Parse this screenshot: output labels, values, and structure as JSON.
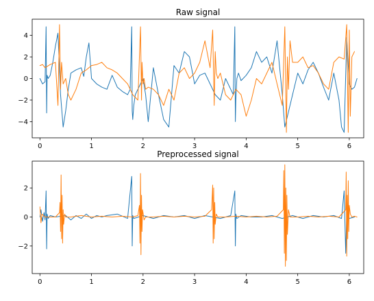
{
  "chart_data": [
    {
      "type": "line",
      "title": "Raw signal",
      "xlabel": "",
      "ylabel": "",
      "xlim": [
        -0.15,
        6.28
      ],
      "ylim": [
        -5.5,
        5.5
      ],
      "xticks": [
        "0",
        "1",
        "2",
        "3",
        "4",
        "5",
        "6"
      ],
      "yticks": [
        "4",
        "2",
        "0",
        "−2",
        "−4"
      ],
      "grid": false,
      "series": [
        {
          "color": "#1f77b4",
          "x": [
            0.0,
            0.05,
            0.1,
            0.12,
            0.13,
            0.14,
            0.16,
            0.2,
            0.25,
            0.3,
            0.35,
            0.4,
            0.45,
            0.5,
            0.55,
            0.6,
            0.7,
            0.8,
            0.85,
            0.9,
            0.95,
            1.0,
            1.1,
            1.2,
            1.3,
            1.4,
            1.5,
            1.6,
            1.7,
            1.75,
            1.78,
            1.79,
            1.8,
            1.82,
            1.85,
            1.9,
            1.95,
            2.0,
            2.05,
            2.1,
            2.2,
            2.3,
            2.4,
            2.5,
            2.6,
            2.7,
            2.8,
            2.9,
            3.0,
            3.1,
            3.2,
            3.3,
            3.4,
            3.5,
            3.6,
            3.7,
            3.75,
            3.78,
            3.79,
            3.8,
            3.82,
            3.85,
            3.9,
            4.0,
            4.1,
            4.2,
            4.3,
            4.4,
            4.5,
            4.6,
            4.7,
            4.75,
            4.8,
            4.9,
            5.0,
            5.1,
            5.2,
            5.3,
            5.4,
            5.5,
            5.6,
            5.7,
            5.8,
            5.85,
            5.9,
            5.95,
            6.0,
            6.05,
            6.1,
            6.15
          ],
          "y": [
            0.0,
            -0.5,
            -0.3,
            4.8,
            -3.2,
            0.3,
            0.0,
            0.3,
            1.5,
            3.0,
            4.2,
            -1.5,
            -4.5,
            -3.0,
            -1.0,
            0.5,
            0.8,
            1.0,
            0.2,
            2.0,
            3.3,
            0.0,
            -0.5,
            -0.8,
            -1.0,
            0.3,
            -0.8,
            -1.2,
            -1.5,
            -1.0,
            4.8,
            -3.0,
            -3.8,
            -2.5,
            -1.5,
            -1.0,
            -0.5,
            0.0,
            -1.5,
            -4.0,
            1.0,
            -1.5,
            -3.8,
            -4.5,
            1.2,
            0.5,
            2.5,
            2.0,
            -0.5,
            0.3,
            0.5,
            -0.5,
            -1.5,
            -2.0,
            0.0,
            -1.0,
            -1.5,
            4.8,
            -4.0,
            -2.0,
            0.0,
            0.5,
            -0.2,
            0.3,
            1.0,
            2.5,
            1.5,
            2.0,
            0.5,
            3.5,
            -1.5,
            -4.5,
            -3.5,
            -1.5,
            0.5,
            -0.5,
            0.8,
            1.5,
            0.5,
            -0.8,
            -2.0,
            0.5,
            -2.0,
            -4.5,
            -5.0,
            3.8,
            -0.5,
            -1.0,
            -0.8,
            0.0
          ]
        },
        {
          "color": "#ff7f0e",
          "x": [
            0.0,
            0.05,
            0.1,
            0.2,
            0.3,
            0.35,
            0.38,
            0.4,
            0.42,
            0.45,
            0.5,
            0.55,
            0.6,
            0.7,
            0.8,
            0.9,
            1.0,
            1.1,
            1.2,
            1.3,
            1.4,
            1.5,
            1.6,
            1.7,
            1.8,
            1.9,
            1.95,
            1.97,
            1.98,
            2.0,
            2.02,
            2.05,
            2.1,
            2.2,
            2.3,
            2.4,
            2.5,
            2.6,
            2.7,
            2.8,
            2.9,
            3.0,
            3.1,
            3.2,
            3.3,
            3.35,
            3.38,
            3.4,
            3.42,
            3.45,
            3.5,
            3.6,
            3.7,
            3.8,
            3.9,
            4.0,
            4.1,
            4.2,
            4.3,
            4.4,
            4.5,
            4.6,
            4.7,
            4.75,
            4.78,
            4.8,
            4.82,
            4.85,
            4.9,
            5.0,
            5.1,
            5.2,
            5.3,
            5.4,
            5.5,
            5.6,
            5.7,
            5.8,
            5.9,
            5.95,
            5.98,
            6.0,
            6.02,
            6.05,
            6.1
          ],
          "y": [
            1.2,
            1.3,
            1.0,
            1.3,
            1.5,
            -2.5,
            5.0,
            -1.0,
            1.5,
            -0.5,
            0.0,
            -1.5,
            -2.0,
            -1.0,
            0.5,
            0.8,
            1.2,
            1.3,
            1.5,
            1.0,
            0.8,
            0.5,
            0.0,
            -0.5,
            -1.5,
            -2.0,
            4.8,
            -2.0,
            1.5,
            -0.5,
            0.0,
            -1.0,
            -0.8,
            -1.0,
            -1.5,
            -2.5,
            -1.0,
            -2.0,
            0.5,
            1.0,
            0.0,
            0.5,
            1.5,
            3.5,
            1.0,
            4.5,
            -2.5,
            2.5,
            0.5,
            0.0,
            0.5,
            -1.5,
            -2.0,
            -1.0,
            -1.5,
            -3.5,
            -2.0,
            0.0,
            -0.5,
            0.5,
            1.5,
            -0.5,
            -2.5,
            4.8,
            -5.0,
            2.0,
            -1.0,
            3.5,
            1.5,
            1.5,
            2.0,
            1.0,
            1.2,
            0.5,
            -0.5,
            -1.0,
            1.5,
            2.0,
            1.8,
            5.0,
            -5.0,
            4.5,
            -3.5,
            2.0,
            2.5
          ]
        }
      ]
    },
    {
      "type": "line",
      "title": "Preprocessed signal",
      "xlabel": "",
      "ylabel": "",
      "xlim": [
        -0.15,
        6.28
      ],
      "ylim": [
        -3.9,
        3.85
      ],
      "xticks": [
        "0",
        "1",
        "2",
        "3",
        "4",
        "5",
        "6"
      ],
      "yticks": [
        "2",
        "0",
        "−2"
      ],
      "grid": false,
      "series": [
        {
          "color": "#1f77b4",
          "x": [
            0.0,
            0.02,
            0.05,
            0.08,
            0.1,
            0.12,
            0.13,
            0.14,
            0.16,
            0.2,
            0.3,
            0.5,
            0.6,
            0.7,
            0.8,
            0.9,
            1.0,
            1.1,
            1.2,
            1.3,
            1.5,
            1.7,
            1.78,
            1.79,
            1.8,
            1.82,
            2.0,
            2.2,
            2.4,
            2.6,
            2.8,
            3.0,
            3.2,
            3.5,
            3.6,
            3.7,
            3.78,
            3.79,
            3.8,
            3.82,
            3.9,
            4.1,
            4.3,
            4.5,
            4.7,
            4.9,
            5.1,
            5.3,
            5.5,
            5.7,
            5.85,
            5.9,
            5.93,
            5.95,
            6.0,
            6.1
          ],
          "y": [
            0.0,
            0.5,
            -0.3,
            0.3,
            -0.2,
            1.8,
            -2.2,
            0.2,
            -0.1,
            0.1,
            0.0,
            0.1,
            -0.2,
            0.1,
            -0.1,
            0.2,
            -0.1,
            0.1,
            0.0,
            0.1,
            0.2,
            -0.1,
            2.8,
            -2.0,
            0.1,
            -0.1,
            0.1,
            -0.1,
            0.1,
            0.0,
            0.1,
            -0.1,
            0.1,
            -0.1,
            0.0,
            0.1,
            1.8,
            -2.0,
            0.2,
            -0.1,
            0.1,
            0.0,
            0.0,
            0.1,
            -0.1,
            0.1,
            -0.1,
            0.1,
            0.0,
            0.1,
            -0.1,
            1.8,
            -2.5,
            0.3,
            -0.1,
            0.0
          ]
        },
        {
          "color": "#ff7f0e",
          "x": [
            0.0,
            0.02,
            0.04,
            0.1,
            0.3,
            0.38,
            0.39,
            0.4,
            0.41,
            0.42,
            0.43,
            0.44,
            0.45,
            0.46,
            0.48,
            0.5,
            0.6,
            0.8,
            1.0,
            1.2,
            1.4,
            1.6,
            1.8,
            1.9,
            1.93,
            1.94,
            1.95,
            1.96,
            1.97,
            1.98,
            1.99,
            2.0,
            2.02,
            2.05,
            2.2,
            2.4,
            2.6,
            2.8,
            3.0,
            3.2,
            3.33,
            3.35,
            3.36,
            3.37,
            3.38,
            3.39,
            3.4,
            3.42,
            3.45,
            3.6,
            3.8,
            4.0,
            4.2,
            4.4,
            4.6,
            4.72,
            4.73,
            4.74,
            4.75,
            4.76,
            4.77,
            4.78,
            4.79,
            4.8,
            4.82,
            4.85,
            5.0,
            5.2,
            5.4,
            5.6,
            5.8,
            5.93,
            5.94,
            5.95,
            5.96,
            5.97,
            5.98,
            5.99,
            6.0,
            6.02,
            6.05,
            6.1,
            6.15
          ],
          "y": [
            0.7,
            -0.4,
            0.2,
            0.0,
            0.0,
            0.3,
            1.0,
            -1.0,
            2.9,
            -1.5,
            1.5,
            -1.8,
            0.5,
            -0.5,
            0.2,
            0.0,
            0.0,
            0.1,
            0.0,
            0.05,
            0.0,
            0.05,
            0.0,
            0.1,
            0.8,
            -1.8,
            3.0,
            -2.6,
            1.5,
            -1.0,
            0.5,
            0.3,
            -0.2,
            0.0,
            0.0,
            0.05,
            0.0,
            0.05,
            0.0,
            0.05,
            0.5,
            2.2,
            -1.8,
            2.0,
            -1.5,
            1.0,
            -0.5,
            0.2,
            0.0,
            0.0,
            0.05,
            0.0,
            0.05,
            0.0,
            0.05,
            0.5,
            3.2,
            -2.5,
            3.6,
            -3.4,
            2.0,
            -3.0,
            1.5,
            -1.2,
            0.5,
            0.0,
            0.0,
            0.05,
            0.0,
            0.05,
            0.0,
            0.5,
            3.1,
            -2.7,
            1.5,
            -1.5,
            2.5,
            -1.0,
            0.8,
            0.2,
            0.0,
            0.05,
            0.0
          ]
        }
      ]
    }
  ]
}
